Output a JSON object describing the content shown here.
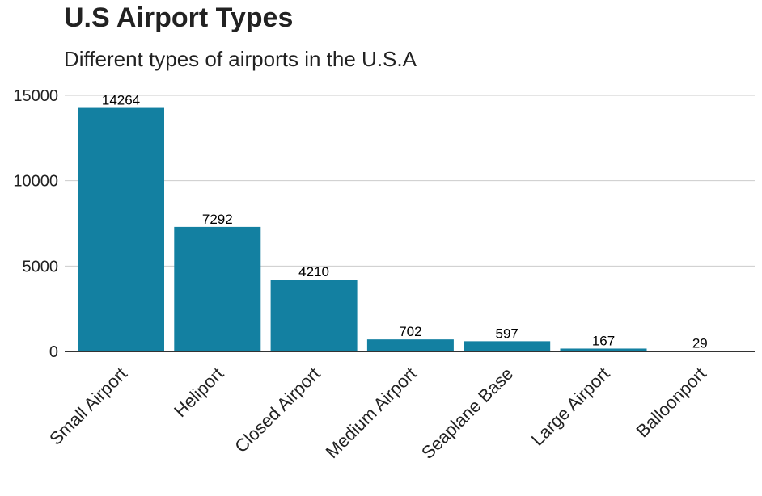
{
  "chart_data": {
    "type": "bar",
    "title": "U.S Airport Types",
    "subtitle": "Different types of airports in the U.S.A",
    "xlabel": "",
    "ylabel": "",
    "categories": [
      "Small Airport",
      "Heliport",
      "Closed Airport",
      "Medium Airport",
      "Seaplane Base",
      "Large Airport",
      "Balloonport"
    ],
    "values": [
      14264,
      7292,
      4210,
      702,
      597,
      167,
      29
    ],
    "ylim": [
      0,
      15000
    ],
    "yticks": [
      0,
      5000,
      10000,
      15000
    ],
    "grid": true,
    "legend": "none",
    "bar_color": "#1380A1"
  }
}
